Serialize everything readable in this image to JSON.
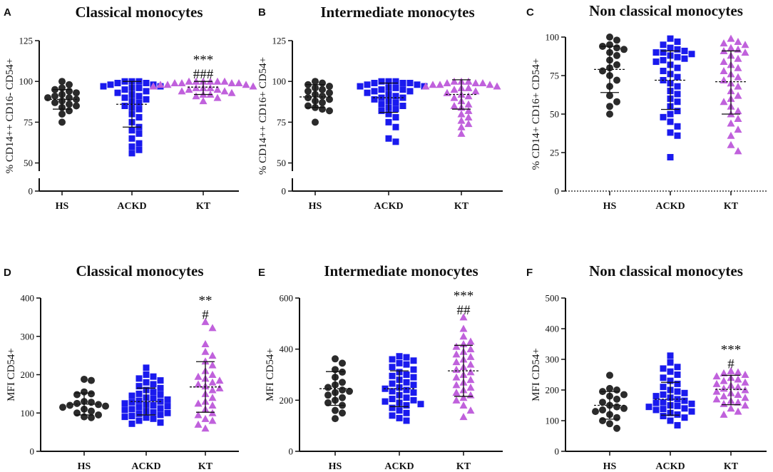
{
  "figure": {
    "colors": {
      "HS": "#2b2b2b",
      "ACKD": "#1a1aee",
      "KT": "#c061dc",
      "axis": "#111111"
    }
  },
  "chart_data": [
    {
      "id": "A",
      "type": "scatter",
      "title": "Classical monocytes",
      "ylabel": "% CD14++ CD16- CD54+",
      "xlabel": "",
      "categories": [
        "HS",
        "ACKD",
        "KT"
      ],
      "ylim": [
        0,
        125
      ],
      "axis_break": [
        5,
        45
      ],
      "yticks": [
        0,
        50,
        75,
        100,
        125
      ],
      "significance": {
        "KT": [
          "***",
          "###"
        ]
      },
      "series": [
        {
          "name": "HS",
          "marker": "circle",
          "mean": 89,
          "sd": [
            83,
            95
          ],
          "values": [
            100,
            98,
            96,
            95,
            94,
            93,
            92,
            91,
            90,
            90,
            89,
            88,
            87,
            86,
            85,
            84,
            82,
            80,
            75
          ]
        },
        {
          "name": "ACKD",
          "marker": "square",
          "mean": 86,
          "sd": [
            72,
            100
          ],
          "values": [
            100,
            100,
            100,
            99,
            99,
            98,
            98,
            97,
            97,
            96,
            96,
            95,
            94,
            93,
            92,
            91,
            90,
            89,
            88,
            87,
            85,
            84,
            83,
            80,
            78,
            75,
            72,
            70,
            68,
            65,
            62,
            60,
            58,
            56
          ]
        },
        {
          "name": "KT",
          "marker": "triangle",
          "mean": 96.5,
          "sd": [
            92,
            100
          ],
          "values": [
            100,
            100,
            100,
            100,
            100,
            100,
            99,
            99,
            99,
            99,
            98,
            98,
            98,
            97,
            97,
            97,
            96,
            96,
            96,
            95,
            95,
            94,
            94,
            93,
            92,
            92,
            91,
            90,
            88
          ]
        }
      ]
    },
    {
      "id": "B",
      "type": "scatter",
      "title": "Intermediate monocytes",
      "ylabel": "% CD14++ CD16+ CD54+",
      "xlabel": "",
      "categories": [
        "HS",
        "ACKD",
        "KT"
      ],
      "ylim": [
        0,
        125
      ],
      "axis_break": [
        5,
        45
      ],
      "yticks": [
        0,
        50,
        75,
        100,
        125
      ],
      "significance": {},
      "series": [
        {
          "name": "HS",
          "marker": "circle",
          "mean": 90.5,
          "sd": [
            84,
            98
          ],
          "values": [
            100,
            99,
            98,
            97,
            96,
            95,
            94,
            93,
            92,
            91,
            90,
            89,
            88,
            87,
            85,
            84,
            83,
            82,
            75
          ]
        },
        {
          "name": "ACKD",
          "marker": "square",
          "mean": 90,
          "sd": [
            81,
            99
          ],
          "values": [
            100,
            100,
            100,
            99,
            99,
            99,
            98,
            98,
            97,
            97,
            96,
            96,
            95,
            95,
            94,
            94,
            93,
            92,
            91,
            90,
            90,
            89,
            88,
            87,
            86,
            85,
            84,
            83,
            82,
            80,
            78,
            75,
            72,
            65,
            63
          ]
        },
        {
          "name": "KT",
          "marker": "triangle",
          "mean": 92,
          "sd": [
            83,
            101
          ],
          "values": [
            100,
            100,
            100,
            99,
            99,
            99,
            98,
            98,
            98,
            97,
            97,
            96,
            96,
            95,
            94,
            93,
            92,
            91,
            90,
            88,
            86,
            85,
            84,
            82,
            80,
            78,
            76,
            74,
            72,
            68
          ]
        }
      ]
    },
    {
      "id": "C",
      "type": "scatter",
      "title": "Non classical monocytes",
      "ylabel": "% CD14+ CD16+ CD54+",
      "xlabel": "",
      "categories": [
        "HS",
        "ACKD",
        "KT"
      ],
      "ylim": [
        0,
        100
      ],
      "axis_break": null,
      "yticks": [
        0,
        25,
        50,
        75,
        100
      ],
      "significance": {},
      "series": [
        {
          "name": "HS",
          "marker": "circle",
          "mean": 79,
          "sd": [
            64,
            94
          ],
          "values": [
            100,
            98,
            95,
            94,
            93,
            92,
            90,
            88,
            85,
            82,
            80,
            78,
            75,
            72,
            68,
            62,
            58,
            55,
            50
          ]
        },
        {
          "name": "ACKD",
          "marker": "square",
          "mean": 72,
          "sd": [
            53,
            91
          ],
          "values": [
            99,
            97,
            95,
            93,
            92,
            91,
            90,
            90,
            89,
            88,
            87,
            86,
            85,
            84,
            82,
            80,
            78,
            76,
            74,
            72,
            70,
            68,
            65,
            63,
            60,
            58,
            55,
            52,
            50,
            48,
            45,
            42,
            38,
            36,
            22
          ]
        },
        {
          "name": "KT",
          "marker": "triangle",
          "mean": 71,
          "sd": [
            50,
            91
          ],
          "values": [
            99,
            97,
            96,
            95,
            93,
            92,
            91,
            90,
            88,
            86,
            84,
            82,
            80,
            78,
            76,
            74,
            72,
            70,
            68,
            65,
            62,
            60,
            58,
            55,
            52,
            50,
            47,
            44,
            40,
            36,
            30,
            26
          ]
        }
      ]
    },
    {
      "id": "D",
      "type": "scatter",
      "title": "Classical monocytes",
      "ylabel": "MFI CD54+",
      "xlabel": "",
      "categories": [
        "HS",
        "ACKD",
        "KT"
      ],
      "ylim": [
        0,
        400
      ],
      "axis_break": null,
      "yticks": [
        0,
        100,
        200,
        300,
        400
      ],
      "significance": {
        "KT": [
          "**",
          "#"
        ]
      },
      "series": [
        {
          "name": "HS",
          "marker": "circle",
          "mean": 123,
          "sd": [
            95,
            152
          ],
          "values": [
            188,
            185,
            155,
            150,
            148,
            130,
            128,
            125,
            122,
            120,
            118,
            115,
            110,
            105,
            100,
            95,
            90,
            88
          ]
        },
        {
          "name": "ACKD",
          "marker": "square",
          "mean": 130,
          "sd": [
            95,
            165
          ],
          "values": [
            218,
            200,
            195,
            190,
            185,
            180,
            175,
            170,
            165,
            160,
            155,
            150,
            148,
            145,
            140,
            138,
            135,
            132,
            130,
            128,
            125,
            122,
            120,
            118,
            115,
            112,
            110,
            108,
            105,
            102,
            100,
            98,
            95,
            92,
            90,
            88,
            85,
            80,
            75,
            72
          ]
        },
        {
          "name": "KT",
          "marker": "triangle",
          "mean": 168,
          "sd": [
            102,
            234
          ],
          "values": [
            338,
            322,
            280,
            260,
            250,
            235,
            225,
            210,
            200,
            195,
            190,
            185,
            180,
            175,
            170,
            165,
            160,
            150,
            140,
            130,
            125,
            120,
            110,
            100,
            95,
            85,
            80,
            70,
            60
          ]
        }
      ]
    },
    {
      "id": "E",
      "type": "scatter",
      "title": "Intermediate monocytes",
      "ylabel": "MFI CD54+",
      "xlabel": "",
      "categories": [
        "HS",
        "ACKD",
        "KT"
      ],
      "ylim": [
        0,
        600
      ],
      "axis_break": null,
      "yticks": [
        0,
        200,
        400,
        600
      ],
      "significance": {
        "KT": [
          "***",
          "##"
        ]
      },
      "series": [
        {
          "name": "HS",
          "marker": "circle",
          "mean": 245,
          "sd": [
            180,
            312
          ],
          "values": [
            362,
            345,
            320,
            310,
            290,
            270,
            260,
            250,
            240,
            235,
            230,
            220,
            210,
            200,
            190,
            180,
            160,
            150,
            128
          ]
        },
        {
          "name": "ACKD",
          "marker": "square",
          "mean": 245,
          "sd": [
            175,
            315
          ],
          "values": [
            372,
            368,
            360,
            355,
            345,
            340,
            330,
            320,
            310,
            300,
            295,
            290,
            280,
            270,
            265,
            260,
            250,
            245,
            240,
            235,
            230,
            220,
            210,
            205,
            200,
            195,
            190,
            185,
            180,
            170,
            160,
            150,
            140,
            130,
            120
          ]
        },
        {
          "name": "KT",
          "marker": "triangle",
          "mean": 315,
          "sd": [
            215,
            415
          ],
          "values": [
            525,
            480,
            450,
            430,
            420,
            410,
            400,
            390,
            380,
            370,
            360,
            350,
            340,
            330,
            320,
            310,
            300,
            290,
            280,
            270,
            260,
            250,
            240,
            230,
            220,
            210,
            200,
            180,
            160,
            135
          ]
        }
      ]
    },
    {
      "id": "F",
      "type": "scatter",
      "title": "Non classical monocytes",
      "ylabel": "MFI CD54+",
      "xlabel": "",
      "categories": [
        "HS",
        "ACKD",
        "KT"
      ],
      "ylim": [
        0,
        500
      ],
      "axis_break": null,
      "yticks": [
        0,
        100,
        200,
        300,
        400,
        500
      ],
      "significance": {
        "KT": [
          "***",
          "#"
        ]
      },
      "series": [
        {
          "name": "HS",
          "marker": "circle",
          "mean": 150,
          "sd": [
            105,
            195
          ],
          "values": [
            248,
            205,
            200,
            195,
            185,
            180,
            170,
            160,
            150,
            145,
            140,
            135,
            130,
            120,
            110,
            100,
            90,
            75
          ]
        },
        {
          "name": "ACKD",
          "marker": "square",
          "mean": 170,
          "sd": [
            118,
            225
          ],
          "values": [
            312,
            290,
            275,
            270,
            260,
            250,
            240,
            230,
            220,
            210,
            200,
            195,
            190,
            185,
            180,
            175,
            170,
            165,
            160,
            158,
            155,
            150,
            148,
            145,
            140,
            138,
            135,
            130,
            125,
            120,
            115,
            110,
            100,
            85
          ]
        },
        {
          "name": "KT",
          "marker": "triangle",
          "mean": 202,
          "sd": [
            152,
            248
          ],
          "values": [
            262,
            258,
            255,
            250,
            245,
            240,
            235,
            230,
            225,
            220,
            215,
            210,
            205,
            200,
            195,
            190,
            185,
            180,
            175,
            170,
            165,
            160,
            155,
            150,
            140,
            130,
            120
          ]
        }
      ]
    }
  ]
}
